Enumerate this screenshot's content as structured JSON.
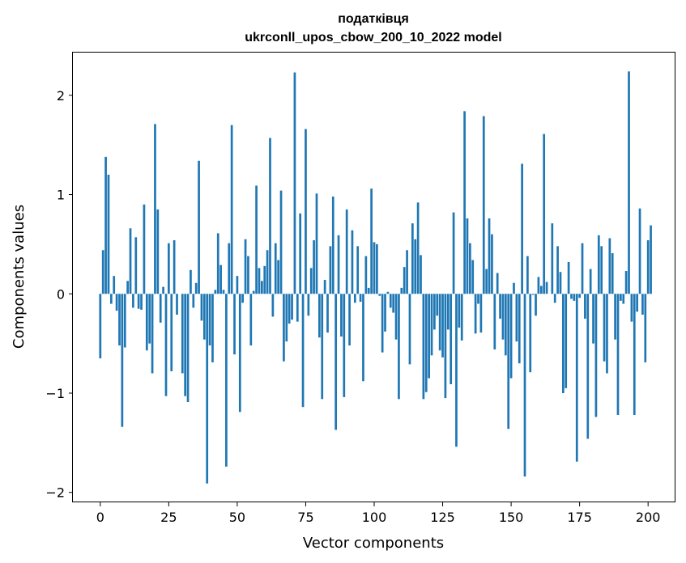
{
  "chart_data": {
    "type": "bar",
    "title": "податківця",
    "subtitle": "ukrconll_upos_cbow_200_10_2022 model",
    "xlabel": "Vector components",
    "ylabel": "Components values",
    "xlim": [
      -10,
      210
    ],
    "ylim": [
      -2.1,
      2.43
    ],
    "xticks": [
      0,
      25,
      50,
      75,
      100,
      125,
      150,
      175,
      200
    ],
    "yticks": [
      -2,
      -1,
      0,
      1,
      2
    ],
    "ytick_labels": [
      "−2",
      "−1",
      "0",
      "1",
      "2"
    ],
    "bar_color": "#1f77b4",
    "values": [
      -0.65,
      0.44,
      1.38,
      1.2,
      -0.1,
      0.18,
      -0.17,
      -0.52,
      -1.34,
      -0.54,
      0.13,
      0.66,
      -0.14,
      0.57,
      -0.15,
      -0.16,
      0.9,
      -0.57,
      -0.5,
      -0.8,
      1.71,
      0.85,
      -0.29,
      0.07,
      -1.03,
      0.51,
      -0.78,
      0.54,
      -0.21,
      0.0,
      -0.8,
      -1.03,
      -1.09,
      0.24,
      -0.14,
      0.11,
      1.34,
      -0.27,
      -0.46,
      -1.91,
      -0.52,
      -0.69,
      0.04,
      0.61,
      0.29,
      0.04,
      -1.74,
      0.51,
      1.7,
      -0.61,
      0.18,
      -1.19,
      -0.09,
      0.55,
      0.38,
      -0.52,
      0.03,
      1.09,
      0.26,
      0.13,
      0.28,
      0.44,
      1.57,
      -0.23,
      0.51,
      0.34,
      1.04,
      -0.68,
      -0.48,
      -0.3,
      -0.26,
      2.23,
      -0.28,
      0.81,
      -1.14,
      1.66,
      -0.22,
      0.26,
      0.54,
      1.01,
      -0.44,
      -1.06,
      0.14,
      -0.39,
      0.48,
      0.98,
      -1.37,
      0.59,
      -0.43,
      -1.04,
      0.85,
      -0.52,
      0.64,
      -0.09,
      0.48,
      -0.08,
      -0.88,
      0.38,
      0.06,
      1.06,
      0.52,
      0.5,
      -0.02,
      -0.59,
      -0.38,
      0.02,
      -0.14,
      -0.19,
      -0.46,
      -1.06,
      0.06,
      0.27,
      0.44,
      -0.71,
      0.71,
      0.55,
      0.92,
      0.39,
      -1.06,
      -0.99,
      -0.85,
      -0.62,
      -0.36,
      -0.22,
      -0.57,
      -0.64,
      -1.05,
      -0.36,
      -0.91,
      0.82,
      -1.54,
      -0.34,
      -0.47,
      1.84,
      0.76,
      0.51,
      0.34,
      -0.4,
      -0.1,
      -0.39,
      1.79,
      0.25,
      0.76,
      0.6,
      -0.56,
      0.21,
      -0.25,
      -0.46,
      -0.62,
      -1.36,
      -0.85,
      0.11,
      -0.48,
      -0.7,
      1.31,
      -1.84,
      0.38,
      -0.79,
      -0.01,
      -0.22,
      0.17,
      0.08,
      1.61,
      0.12,
      0.0,
      0.71,
      -0.09,
      0.48,
      0.22,
      -1.0,
      -0.95,
      0.32,
      -0.05,
      -0.07,
      -1.69,
      -0.04,
      0.51,
      -0.25,
      -1.46,
      0.25,
      -0.5,
      -1.24,
      0.59,
      0.48,
      -0.68,
      -0.8,
      0.56,
      0.41,
      -0.46,
      -1.22,
      -0.07,
      -0.1,
      0.23,
      2.24,
      -0.28,
      -1.22,
      -0.18,
      0.86,
      -0.21,
      -0.69,
      0.54,
      0.69
    ]
  }
}
